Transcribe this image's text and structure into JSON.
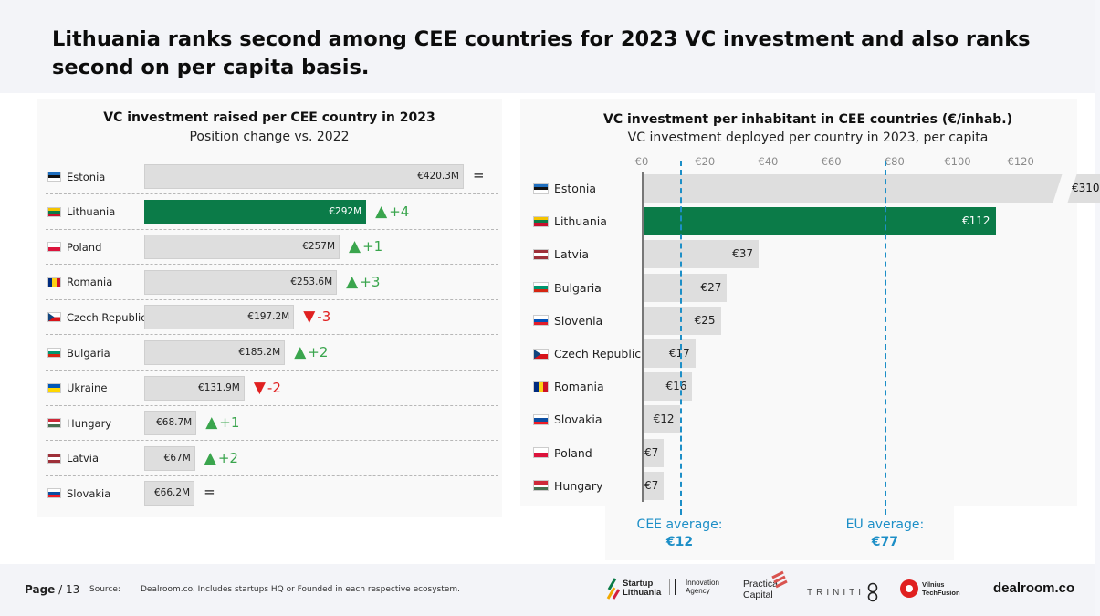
{
  "title": "Lithuania ranks second among CEE countries for 2023 VC investment and also ranks second on per capita basis.",
  "left_chart_title": "VC investment raised per CEE country in 2023",
  "left_chart_subtitle": "Position change vs. 2022",
  "right_chart_title": "VC investment per inhabitant in CEE countries (€/inhab.)",
  "right_chart_subtitle": "VC investment deployed per country in 2023, per capita",
  "cee_average": {
    "label": "CEE average:",
    "value_label": "€12",
    "value": 12
  },
  "eu_average": {
    "label": "EU average:",
    "value_label": "€77",
    "value": 77
  },
  "footer": {
    "page_label": "Page",
    "page_number": "/ 13",
    "source_label": "Source:",
    "source_text": "Dealroom.co. Includes startups HQ or Founded in each respective ecosystem."
  },
  "logos": {
    "startup_lithuania": "Startup Lithuania",
    "innovation_agency": "Innovation Agency",
    "practica": "Practica Capital",
    "triniti": "TRINITI",
    "vilnius": "Vilnius TechFusion",
    "dealroom": "dealroom.co"
  },
  "colors": {
    "highlight": "#0b7b48",
    "bar": "#dedede",
    "up": "#3aa54d",
    "down": "#e02020",
    "average": "#1d8fc7"
  },
  "chart_data": [
    {
      "type": "bar",
      "orientation": "horizontal",
      "title": "VC investment raised per CEE country in 2023",
      "subtitle": "Position change vs. 2022",
      "unit": "€M",
      "categories": [
        "Estonia",
        "Lithuania",
        "Poland",
        "Romania",
        "Czech Republic",
        "Bulgaria",
        "Ukraine",
        "Hungary",
        "Latvia",
        "Slovakia"
      ],
      "values": [
        420.3,
        292,
        257,
        253.6,
        197.2,
        185.2,
        131.9,
        68.7,
        67,
        66.2
      ],
      "value_labels": [
        "€420.3M",
        "€292M",
        "€257M",
        "€253.6M",
        "€197.2M",
        "€185.2M",
        "€131.9M",
        "€68.7M",
        "€67M",
        "€66.2M"
      ],
      "position_change": [
        "=",
        "+4",
        "+1",
        "+3",
        "-3",
        "+2",
        "-2",
        "+1",
        "+2",
        "="
      ],
      "highlight": "Lithuania"
    },
    {
      "type": "bar",
      "orientation": "horizontal",
      "title": "VC investment per inhabitant in CEE countries (€/inhab.)",
      "subtitle": "VC investment deployed per country in 2023, per capita",
      "unit": "€/inhab.",
      "categories": [
        "Estonia",
        "Lithuania",
        "Latvia",
        "Bulgaria",
        "Slovenia",
        "Czech Republic",
        "Romania",
        "Slovakia",
        "Poland",
        "Hungary"
      ],
      "values": [
        310,
        112,
        37,
        27,
        25,
        17,
        16,
        12,
        7,
        7
      ],
      "value_labels": [
        "€310",
        "€112",
        "€37",
        "€27",
        "€25",
        "€17",
        "€16",
        "€12",
        "€7",
        "€7"
      ],
      "x_ticks": [
        "€0",
        "€20",
        "€40",
        "€60",
        "€80",
        "€100",
        "€120"
      ],
      "xlim": [
        0,
        125
      ],
      "axis_break_for": "Estonia",
      "highlight": "Lithuania",
      "reference_lines": [
        {
          "label": "CEE average",
          "value": 12
        },
        {
          "label": "EU average",
          "value": 77
        }
      ]
    }
  ]
}
